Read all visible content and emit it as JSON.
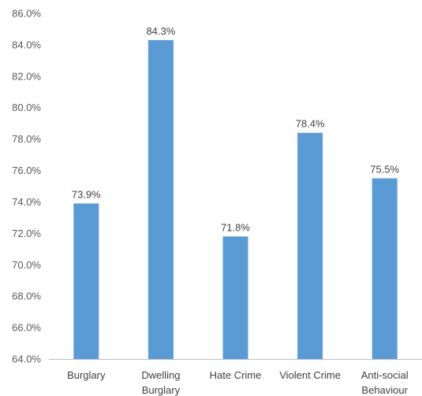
{
  "chart_data": {
    "type": "bar",
    "title": "",
    "xlabel": "",
    "ylabel": "",
    "categories": [
      [
        "Burglary"
      ],
      [
        "Dwelling",
        "Burglary"
      ],
      [
        "Hate Crime"
      ],
      [
        "Violent Crime"
      ],
      [
        "Anti-social",
        "Behaviour"
      ]
    ],
    "values": [
      73.9,
      84.3,
      71.8,
      78.4,
      75.5
    ],
    "value_labels": [
      "73.9%",
      "84.3%",
      "71.8%",
      "78.4%",
      "75.5%"
    ],
    "ylim": [
      64.0,
      86.0
    ],
    "ytick_labels": [
      "64.0%",
      "66.0%",
      "68.0%",
      "70.0%",
      "72.0%",
      "74.0%",
      "76.0%",
      "78.0%",
      "80.0%",
      "82.0%",
      "84.0%",
      "86.0%"
    ],
    "grid": false,
    "legend": "none",
    "bar_color": "#5b9bd5",
    "axis_color": "#bfbfbf"
  }
}
